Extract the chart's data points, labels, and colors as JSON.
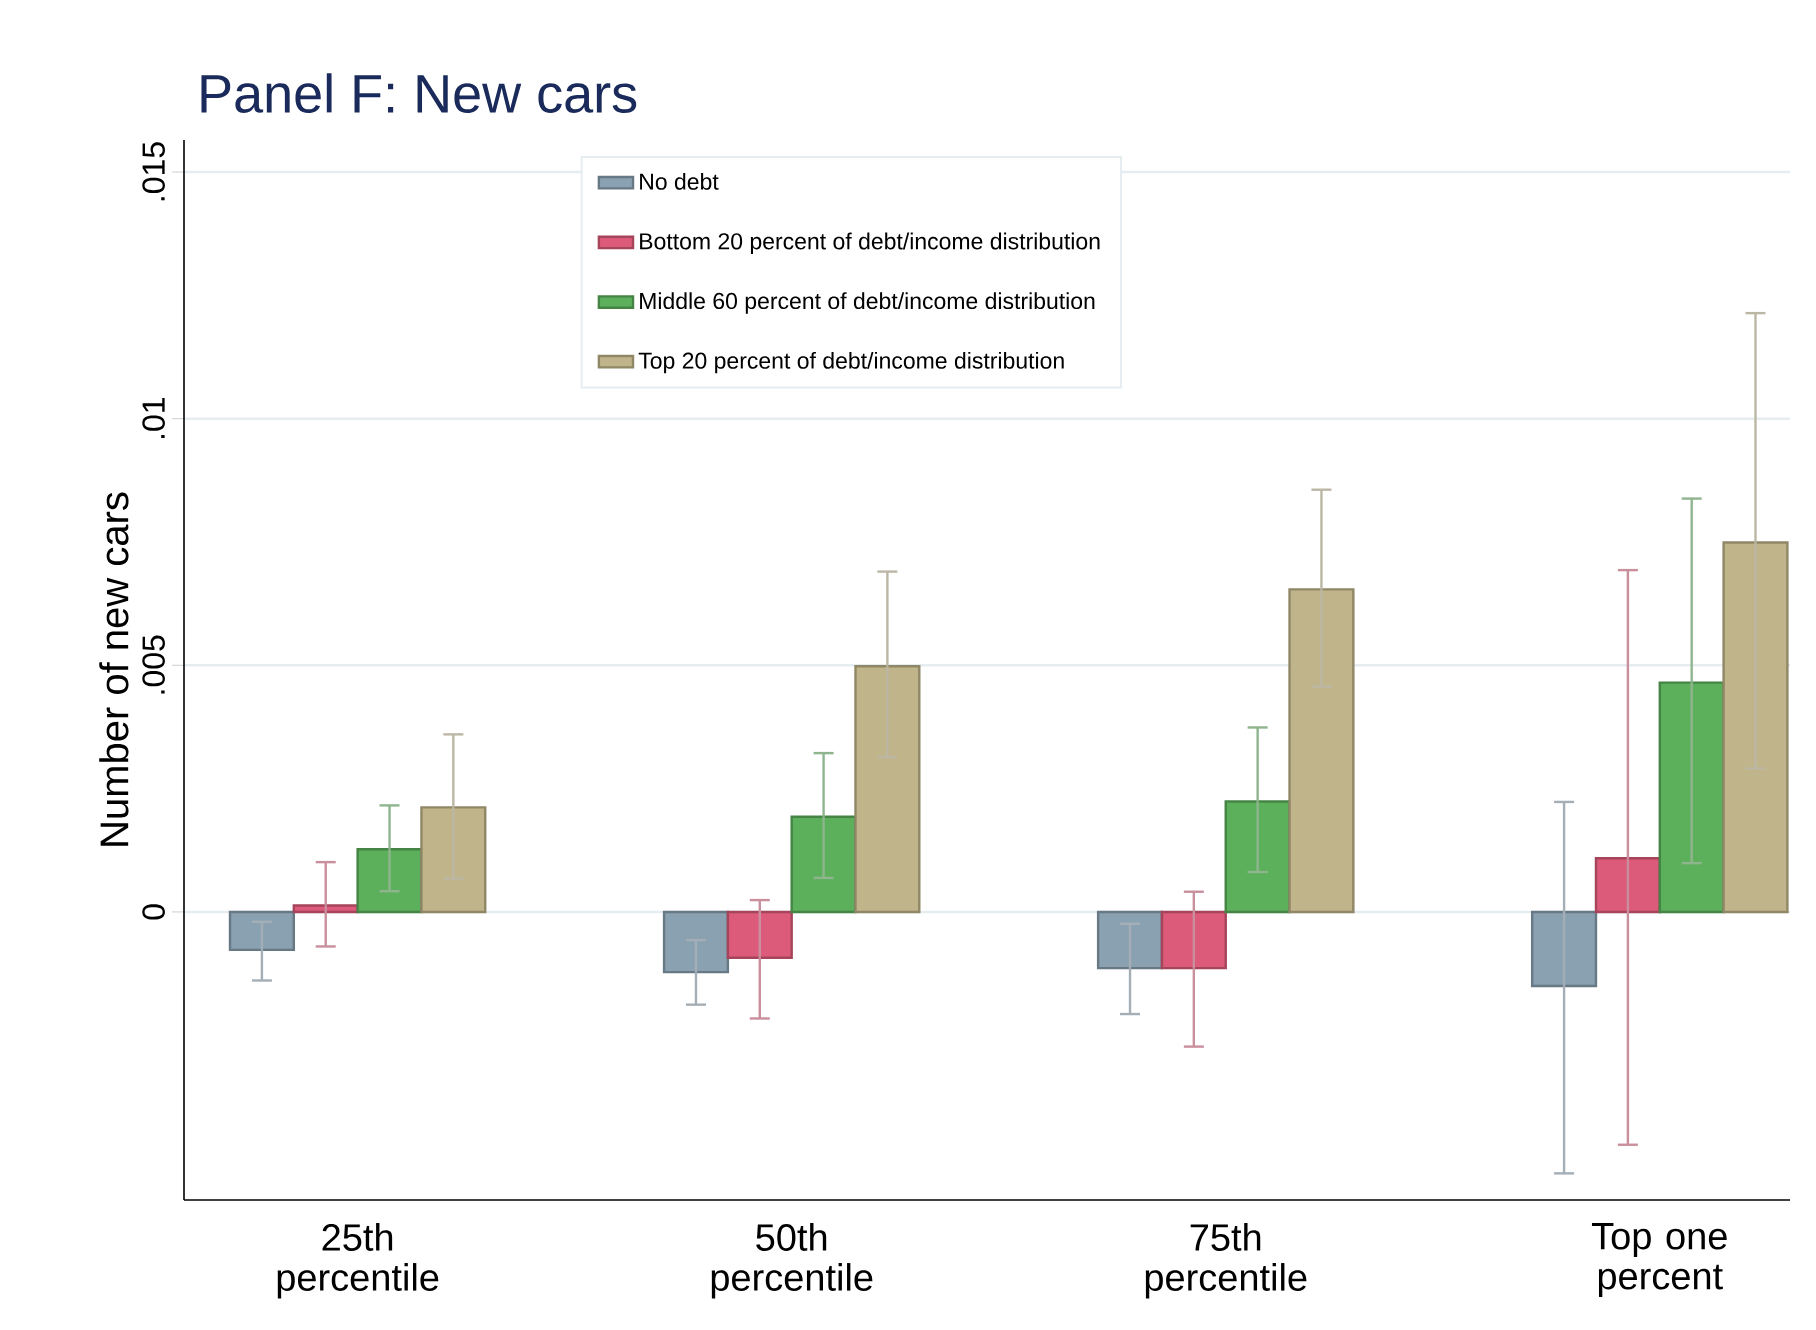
{
  "chart_data": {
    "type": "bar",
    "title": "Panel F: New cars",
    "ylabel": "Number of new cars",
    "categories": [
      "25th percentile",
      "50th percentile",
      "75th percentile",
      "Top one percent"
    ],
    "series": [
      {
        "name": "No debt",
        "color": "#8aa1b1",
        "values": [
          -0.00077,
          -0.00122,
          -0.00114,
          -0.0015
        ],
        "errors": [
          [
            -0.00139,
            -0.0002
          ],
          [
            -0.00188,
            -0.00057
          ],
          [
            -0.00207,
            -0.00024
          ],
          [
            -0.0053,
            0.00223
          ]
        ]
      },
      {
        "name": "Bottom 20 percent of debt/income distribution",
        "color": "#dc5a7a",
        "values": [
          0.00013,
          -0.00093,
          -0.00114,
          0.00109
        ],
        "errors": [
          [
            -0.0007,
            0.00101
          ],
          [
            -0.00216,
            0.00024
          ],
          [
            -0.00273,
            0.00041
          ],
          [
            -0.00472,
            0.00693
          ]
        ]
      },
      {
        "name": "Middle 60 percent of debt/income distribution",
        "color": "#5cb05c",
        "values": [
          0.00127,
          0.00193,
          0.00224,
          0.00465
        ],
        "errors": [
          [
            0.00042,
            0.00216
          ],
          [
            0.00069,
            0.00322
          ],
          [
            0.00081,
            0.00374
          ],
          [
            0.00099,
            0.00838
          ]
        ]
      },
      {
        "name": "Top 20 percent of debt/income distribution",
        "color": "#c0b48a",
        "values": [
          0.00212,
          0.00498,
          0.00654,
          0.00749
        ],
        "errors": [
          [
            0.00068,
            0.0036
          ],
          [
            0.00314,
            0.0069
          ],
          [
            0.00457,
            0.00856
          ],
          [
            0.00291,
            0.01214
          ]
        ]
      }
    ],
    "ylim": [
      -0.00584,
      0.01565
    ],
    "yticks": [
      {
        "value": 0,
        "label": "0"
      },
      {
        "value": 0.005,
        "label": ".005"
      },
      {
        "value": 0.01,
        "label": ".01"
      },
      {
        "value": 0.015,
        "label": ".015"
      }
    ],
    "grid": "y",
    "legend": "top"
  }
}
